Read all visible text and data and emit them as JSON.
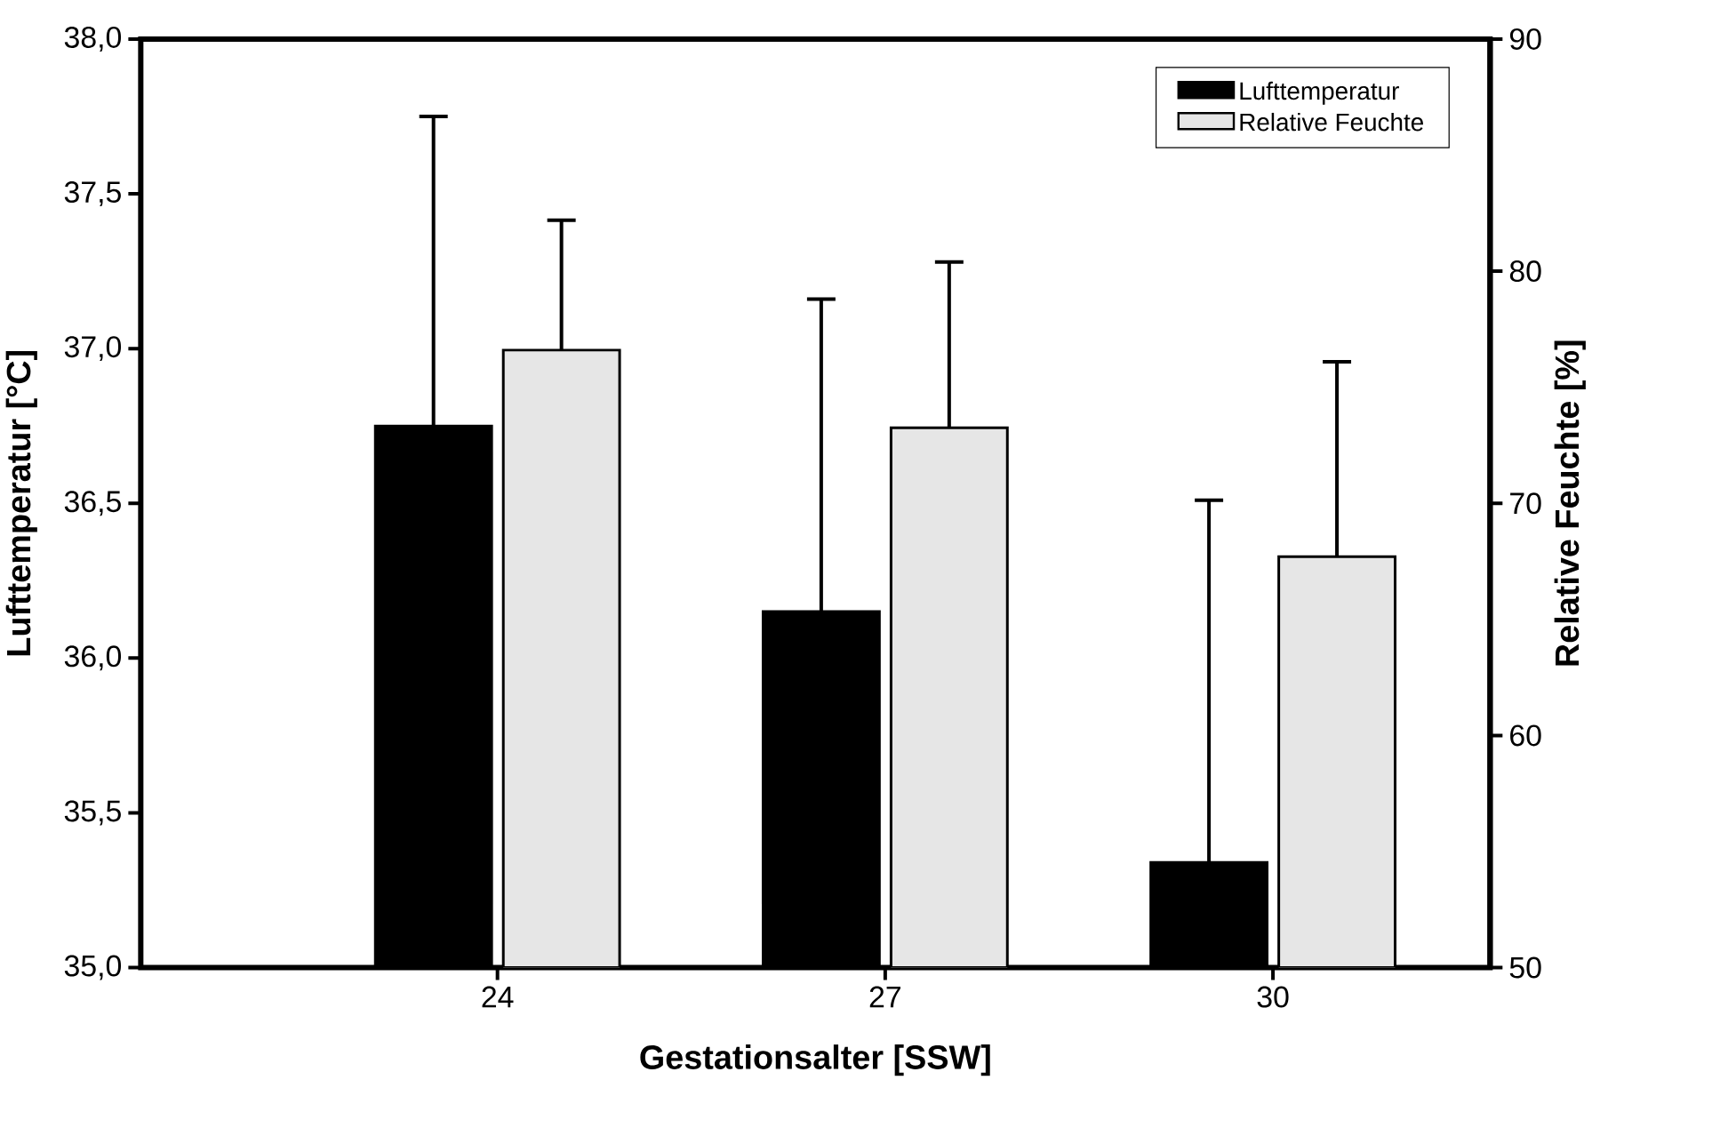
{
  "chart_data": {
    "type": "bar",
    "xlabel": "Gestationsalter [SSW]",
    "ylabel": "Lufttemperatur [°C]",
    "y2label": "Relative Feuchte [%]",
    "categories": [
      "24",
      "27",
      "30"
    ],
    "series": [
      {
        "name": "Lufttemperatur",
        "color": "#000000",
        "values": [
          36.75,
          36.15,
          35.34
        ],
        "errors": [
          [
            36.75,
            37.75
          ],
          [
            36.15,
            37.16
          ],
          [
            35.34,
            36.51
          ]
        ]
      },
      {
        "name": "Relative Feuchte",
        "color": "#e6e6e6",
        "axis": "y2",
        "values": [
          76.6,
          73.25,
          67.7
        ],
        "errors": [
          [
            76.6,
            82.2
          ],
          [
            73.25,
            80.4
          ],
          [
            67.7,
            76.1
          ]
        ]
      }
    ],
    "ylim": [
      35,
      38
    ],
    "yticks": [
      {
        "value": 35,
        "label": "35,0"
      },
      {
        "value": 35.5,
        "label": "35,5"
      },
      {
        "value": 36,
        "label": "36,0"
      },
      {
        "value": 36.5,
        "label": "36,5"
      },
      {
        "value": 37,
        "label": "37,0"
      },
      {
        "value": 37.5,
        "label": "37,5"
      },
      {
        "value": 38,
        "label": "38,0"
      }
    ],
    "y2lim": [
      50,
      90
    ],
    "y2ticks": [
      50,
      60,
      70,
      80,
      90
    ],
    "legend": "top right",
    "grid": false
  }
}
